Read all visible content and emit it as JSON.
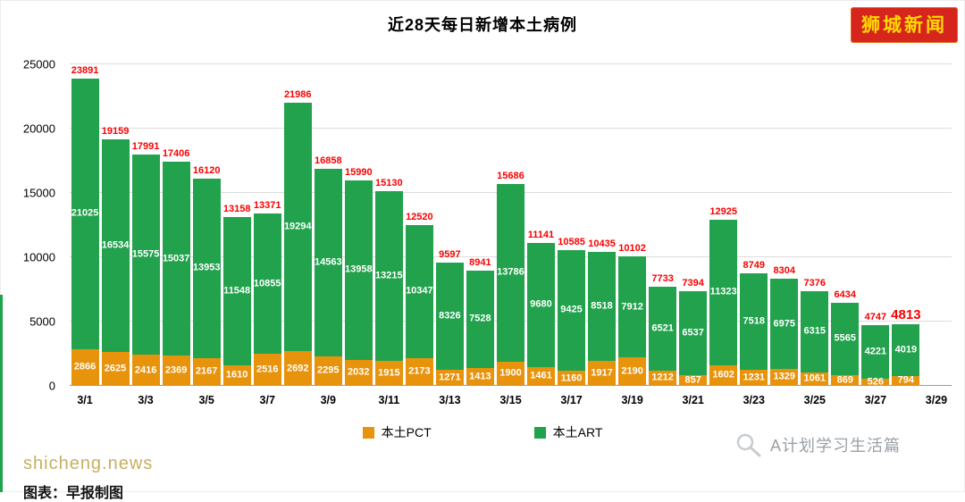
{
  "title": "近28天每日新增本土病例",
  "badge": {
    "text": "狮城新闻",
    "bg": "#d6251d",
    "fg": "#ffd800"
  },
  "watermark": "shicheng.news",
  "caption": "图表：早报制图",
  "brand": {
    "text": "A计划学习生活篇",
    "icon": "magnifier-icon"
  },
  "legend": [
    {
      "label": "本土PCT",
      "color": "#e8930c"
    },
    {
      "label": "本土ART",
      "color": "#22a24d"
    }
  ],
  "y_axis": {
    "ticks": [
      "0",
      "5000",
      "10000",
      "15000",
      "20000",
      "25000"
    ]
  },
  "x_axis": {
    "ticks": [
      "3/1",
      "3/3",
      "3/5",
      "3/7",
      "3/9",
      "3/11",
      "3/13",
      "3/15",
      "3/17",
      "3/19",
      "3/21",
      "3/23",
      "3/25",
      "3/27",
      "3/29"
    ]
  },
  "chart_data": {
    "type": "bar",
    "stacked": true,
    "title": "近28天每日新增本土病例",
    "categories": [
      "3/1",
      "3/2",
      "3/3",
      "3/4",
      "3/5",
      "3/6",
      "3/7",
      "3/8",
      "3/9",
      "3/10",
      "3/11",
      "3/12",
      "3/13",
      "3/14",
      "3/15",
      "3/16",
      "3/17",
      "3/18",
      "3/19",
      "3/20",
      "3/21",
      "3/22",
      "3/23",
      "3/24",
      "3/25",
      "3/26",
      "3/27",
      "3/28"
    ],
    "series": [
      {
        "name": "本土PCT",
        "color": "#e8930c",
        "values": [
          2866,
          2625,
          2416,
          2369,
          2167,
          1610,
          2516,
          2692,
          2295,
          2032,
          1915,
          2173,
          1271,
          1413,
          1900,
          1461,
          1160,
          1917,
          2190,
          1212,
          857,
          1602,
          1231,
          1329,
          1061,
          869,
          526,
          794
        ]
      },
      {
        "name": "本土ART",
        "color": "#22a24d",
        "values": [
          21025,
          16534,
          15575,
          15037,
          13953,
          11548,
          10855,
          19294,
          14563,
          13958,
          13215,
          10347,
          8326,
          7528,
          13786,
          9680,
          9425,
          8518,
          7912,
          6521,
          6537,
          11323,
          7518,
          6975,
          6315,
          5565,
          4221,
          4019
        ]
      }
    ],
    "totals": [
      23891,
      19159,
      17991,
      17406,
      16120,
      13158,
      13371,
      21986,
      16858,
      15990,
      15130,
      12520,
      9597,
      8941,
      15686,
      11141,
      10585,
      10435,
      10102,
      7733,
      7394,
      12925,
      8749,
      8304,
      7376,
      6434,
      4747,
      4813
    ],
    "total_label_color": "#fa0000",
    "value_label_color": "#ffffff",
    "ylim": [
      0,
      25000
    ],
    "grid": true,
    "legend_position": "bottom"
  }
}
